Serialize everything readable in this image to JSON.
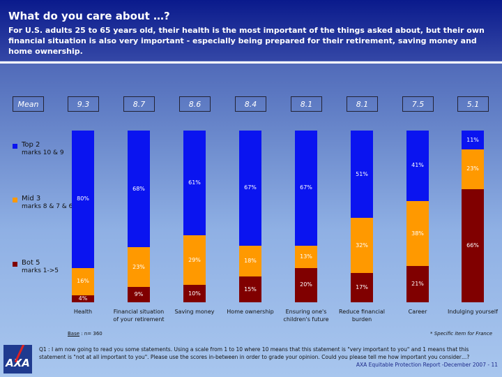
{
  "header": {
    "title": "What do you care about …?",
    "subtitle": "For U.S. adults 25 to 65 years old, their health is the most important of the things asked about, but their own financial situation is also very important - especially being prepared for their retirement, saving money and home ownership."
  },
  "mean_label": "Mean",
  "legend": [
    {
      "name": "Top 2",
      "desc": "marks 10 & 9",
      "color": "#0a14f0"
    },
    {
      "name": "Mid 3",
      "desc": "marks 8 & 7 & 6",
      "color": "#ff9900"
    },
    {
      "name": "Bot 5",
      "desc": "marks 1->5",
      "color": "#800000"
    }
  ],
  "chart_data": {
    "type": "bar",
    "stacked": true,
    "categories": [
      "Health",
      "Financial situation of your retirement",
      "Saving money",
      "Home ownership",
      "Ensuring one's children's future",
      "Reduce financial burden",
      "Career",
      "Indulging yourself"
    ],
    "means": [
      "9.3",
      "8.7",
      "8.6",
      "8.4",
      "8.1",
      "8.1",
      "7.5",
      "5.1"
    ],
    "series": [
      {
        "name": "Top 2",
        "values": [
          80,
          68,
          61,
          67,
          67,
          51,
          41,
          11
        ]
      },
      {
        "name": "Mid 3",
        "values": [
          16,
          23,
          29,
          18,
          13,
          32,
          38,
          23
        ]
      },
      {
        "name": "Bot 5",
        "values": [
          4,
          9,
          10,
          15,
          20,
          17,
          21,
          66
        ]
      }
    ],
    "ylim": [
      0,
      100
    ]
  },
  "footer": {
    "base_label": "Base",
    "base_value": ": n= 360",
    "specific_note": "* Specific item for France",
    "question": "Q1 : I am now going to read you some statements. Using a scale from 1 to 10 where 10 means that this statement is \"very important to you\" and 1 means that this statement is \"not at all important to you\". Please use the scores in-between in order to grade your opinion. Could you please tell me how important you consider…?",
    "source": "AXA Equitable Protection Report -December 2007 - 11",
    "logo": "AXA"
  }
}
